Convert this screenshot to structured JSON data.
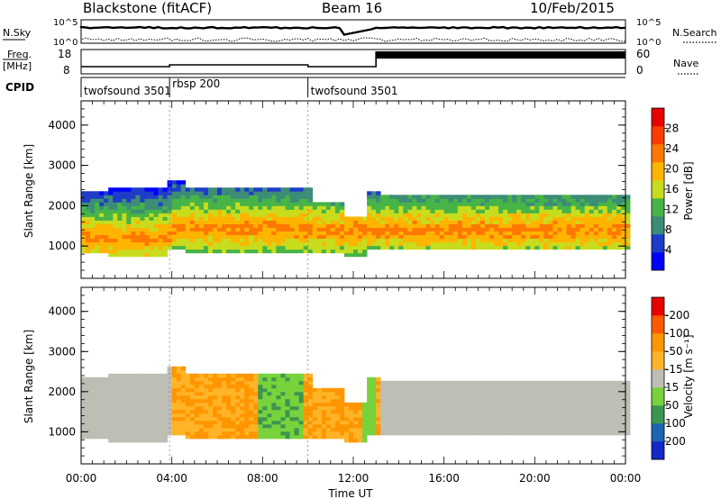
{
  "header": {
    "station": "Blackstone (fitACF)",
    "beam": "Beam 16",
    "date": "10/Feb/2015"
  },
  "panels": {
    "nsky": {
      "label": "N.Sky",
      "ticks": [
        "10^5",
        "10^0"
      ]
    },
    "nsearch": {
      "label": "N.Search",
      "ticks": [
        "10^5",
        "10^0"
      ]
    },
    "freq": {
      "label_top": "Freq.",
      "label_unit": "[MHz]",
      "ticks": [
        "18",
        "8"
      ]
    },
    "nave": {
      "label": "Nave",
      "ticks": [
        "60",
        "0"
      ]
    },
    "cpid": {
      "label": "CPID",
      "segments": [
        {
          "name": "twofsound 3501",
          "start_h": 0,
          "end_h": 3.9
        },
        {
          "name": "rbsp 200",
          "start_h": 3.9,
          "end_h": 10.0
        },
        {
          "name": "twofsound 3501",
          "start_h": 10.0,
          "end_h": 24
        }
      ]
    }
  },
  "chart_data": [
    {
      "type": "heatmap",
      "name": "Power",
      "ylabel": "Slant Range [km]",
      "xlabel": "",
      "xlim_hours": [
        0,
        24
      ],
      "ylim_km": [
        200,
        4600
      ],
      "yticks": [
        "1000",
        "2000",
        "3000",
        "4000"
      ],
      "colorbar": {
        "label": "Power [dB]",
        "ticks": [
          "4",
          "8",
          "12",
          "16",
          "20",
          "24",
          "28"
        ],
        "colors": [
          "#0000ff",
          "#1e3cc8",
          "#3c8c78",
          "#46b446",
          "#c8dc1e",
          "#ffb400",
          "#ff7800",
          "#ff3c00",
          "#e60000"
        ]
      }
    },
    {
      "type": "heatmap",
      "name": "Velocity",
      "ylabel": "Slant Range [km]",
      "xlabel": "Time UT",
      "xlim_hours": [
        0,
        24
      ],
      "ylim_km": [
        200,
        4600
      ],
      "yticks": [
        "1000",
        "2000",
        "3000",
        "4000"
      ],
      "xticks": [
        "00:00",
        "04:00",
        "08:00",
        "12:00",
        "16:00",
        "20:00",
        "00:00"
      ],
      "colorbar": {
        "label": "Velocity [m s⁻¹]",
        "ticks": [
          "200",
          "100",
          "50",
          "15",
          "-15",
          "-50",
          "-100",
          "-200"
        ],
        "colors": [
          "#1428c8",
          "#1e64b4",
          "#3c9650",
          "#78d23c",
          "#bebeb4",
          "#ffb428",
          "#ff9600",
          "#ff5a00",
          "#e60000"
        ]
      }
    }
  ]
}
